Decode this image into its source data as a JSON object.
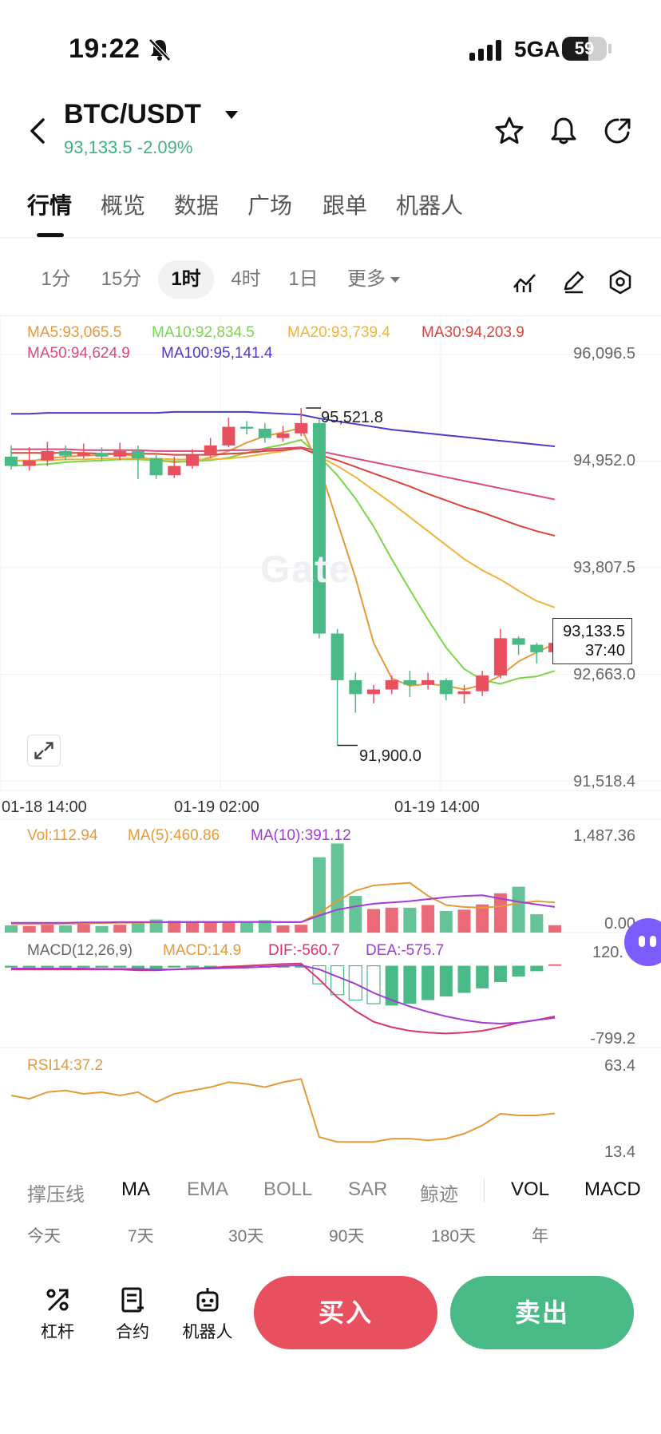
{
  "status_bar": {
    "time": "19:22",
    "network": "5GA",
    "battery": "59",
    "battery_level": 0.59
  },
  "header": {
    "pair": "BTC/USDT",
    "price_change": "93,133.5 -2.09%",
    "icons": [
      "back-icon",
      "star-icon",
      "bell-icon",
      "share-icon"
    ]
  },
  "main_tabs": [
    "行情",
    "概览",
    "数据",
    "广场",
    "跟单",
    "机器人"
  ],
  "intervals": {
    "items": [
      "1分",
      "15分",
      "1时",
      "4时",
      "1日",
      "更多"
    ],
    "active": "1时"
  },
  "watermark": "Gate",
  "colors": {
    "up": "#e8505f",
    "down": "#49b985",
    "ma5": "#e59a3a",
    "ma10": "#7bd64b",
    "ma20": "#f0b43a",
    "ma30": "#d9443b",
    "ma50": "#d94b7a",
    "ma100": "#4a3bc8"
  },
  "ma_legend": {
    "ma5": "MA5:93,065.5",
    "ma10": "MA10:92,834.5",
    "ma20": "MA20:93,739.4",
    "ma30": "MA30:94,203.9",
    "ma50": "MA50:94,624.9",
    "ma100": "MA100:95,141.4"
  },
  "price_axis": [
    "96,096.5",
    "94,952.0",
    "93,807.5",
    "92,663.0",
    "91,518.4"
  ],
  "time_axis": [
    "01-18 14:00",
    "01-19 02:00",
    "01-19 14:00"
  ],
  "high_label": "95,521.8",
  "low_label": "91,900.0",
  "current_price": "93,133.5",
  "countdown": "37:40",
  "volume": {
    "label": "Vol:112.94",
    "ma5": "MA(5):460.86",
    "ma10": "MA(10):391.12",
    "axis_top": "1,487.36",
    "axis_bottom": "0.00"
  },
  "macd": {
    "label": "MACD(12,26,9)",
    "macd": "MACD:14.9",
    "dif": "DIF:-560.7",
    "dea": "DEA:-575.7",
    "axis_top": "120.",
    "axis_bottom": "-799.2"
  },
  "rsi": {
    "label": "RSI14:37.2",
    "axis_top": "63.4",
    "axis_bottom": "13.4"
  },
  "indicator_tabs": [
    "撑压线",
    "MA",
    "EMA",
    "BOLL",
    "SAR",
    "鲸迹",
    "VOL",
    "MACD"
  ],
  "periods": [
    "今天",
    "7天",
    "30天",
    "90天",
    "180天",
    "年"
  ],
  "bottom_tools": [
    "杠杆",
    "合约",
    "机器人"
  ],
  "buy_label": "买入",
  "sell_label": "卖出",
  "chart_data": {
    "type": "candlestick",
    "price_range": [
      91518.4,
      96096.5
    ],
    "x": [
      "01-18 14:00",
      "01-19 02:00",
      "01-19 14:00"
    ],
    "candles": [
      [
        95000,
        94900,
        95120,
        94860
      ],
      [
        94900,
        94960,
        95100,
        94850
      ],
      [
        94960,
        95060,
        95160,
        94900
      ],
      [
        95060,
        95010,
        95120,
        94960
      ],
      [
        95010,
        95040,
        95140,
        94980
      ],
      [
        95040,
        95000,
        95100,
        94950
      ],
      [
        95000,
        95060,
        95150,
        94960
      ],
      [
        95060,
        94980,
        95120,
        94760
      ],
      [
        94980,
        94800,
        95040,
        94760
      ],
      [
        94800,
        94900,
        95000,
        94770
      ],
      [
        94900,
        95020,
        95080,
        94870
      ],
      [
        95020,
        95120,
        95200,
        94990
      ],
      [
        95120,
        95320,
        95420,
        95100
      ],
      [
        95320,
        95300,
        95380,
        95240
      ],
      [
        95300,
        95200,
        95360,
        95150
      ],
      [
        95200,
        95250,
        95330,
        95160
      ],
      [
        95250,
        95360,
        95522,
        95220
      ],
      [
        95360,
        93100,
        95400,
        93050
      ],
      [
        93100,
        92600,
        93150,
        91900
      ],
      [
        92600,
        92450,
        92680,
        92250
      ],
      [
        92450,
        92500,
        92550,
        92350
      ],
      [
        92500,
        92600,
        92650,
        92450
      ],
      [
        92600,
        92550,
        92700,
        92420
      ],
      [
        92550,
        92600,
        92680,
        92500
      ],
      [
        92600,
        92450,
        92620,
        92380
      ],
      [
        92450,
        92480,
        92550,
        92350
      ],
      [
        92480,
        92650,
        92700,
        92430
      ],
      [
        92650,
        93050,
        93150,
        92620
      ],
      [
        93050,
        92980,
        93070,
        92870
      ],
      [
        92980,
        92900,
        93000,
        92780
      ],
      [
        92900,
        93000,
        93040,
        92850
      ]
    ],
    "ma": {
      "MA5": [
        94960,
        94950,
        94980,
        95000,
        95010,
        95020,
        95030,
        95000,
        94960,
        94940,
        94950,
        94990,
        95060,
        95150,
        95220,
        95260,
        95310,
        94900,
        94300,
        93700,
        93000,
        92620,
        92540,
        92560,
        92540,
        92500,
        92550,
        92650,
        92800,
        92900,
        92990
      ],
      "MA10": [
        94900,
        94910,
        94920,
        94940,
        94950,
        94960,
        94970,
        94970,
        94960,
        94950,
        94950,
        94960,
        94990,
        95040,
        95090,
        95130,
        95180,
        95000,
        94800,
        94550,
        94250,
        93900,
        93570,
        93250,
        92950,
        92720,
        92600,
        92560,
        92620,
        92640,
        92700
      ],
      "MA20": [
        94960,
        94960,
        94960,
        94970,
        94970,
        94980,
        94980,
        94980,
        94980,
        94970,
        94970,
        94970,
        94980,
        95000,
        95030,
        95060,
        95100,
        95000,
        94900,
        94780,
        94640,
        94500,
        94350,
        94200,
        94050,
        93900,
        93780,
        93680,
        93560,
        93450,
        93380
      ],
      "MA30": [
        95040,
        95040,
        95040,
        95040,
        95040,
        95030,
        95030,
        95030,
        95030,
        95020,
        95020,
        95020,
        95030,
        95040,
        95060,
        95070,
        95090,
        95020,
        94960,
        94890,
        94820,
        94750,
        94680,
        94600,
        94530,
        94460,
        94400,
        94330,
        94260,
        94200,
        94150
      ],
      "MA50": [
        95080,
        95080,
        95080,
        95080,
        95070,
        95070,
        95070,
        95070,
        95060,
        95060,
        95060,
        95060,
        95070,
        95070,
        95080,
        95090,
        95100,
        95060,
        95020,
        94980,
        94940,
        94900,
        94860,
        94820,
        94780,
        94740,
        94700,
        94660,
        94620,
        94580,
        94540
      ],
      "MA100": [
        95460,
        95460,
        95470,
        95470,
        95470,
        95470,
        95470,
        95470,
        95470,
        95480,
        95480,
        95480,
        95480,
        95480,
        95470,
        95460,
        95450,
        95410,
        95380,
        95350,
        95320,
        95290,
        95270,
        95250,
        95230,
        95210,
        95190,
        95170,
        95150,
        95130,
        95110
      ]
    },
    "volume": {
      "range": [
        0,
        1487.36
      ],
      "values": [
        110,
        100,
        120,
        110,
        130,
        100,
        120,
        140,
        200,
        180,
        170,
        160,
        170,
        150,
        190,
        110,
        120,
        1150,
        1360,
        560,
        360,
        380,
        380,
        420,
        330,
        350,
        430,
        600,
        700,
        280,
        112.94
      ],
      "ma5": [
        130,
        130,
        130,
        135,
        140,
        145,
        150,
        150,
        155,
        160,
        165,
        165,
        165,
        165,
        165,
        160,
        160,
        300,
        480,
        640,
        720,
        740,
        760,
        560,
        420,
        390,
        380,
        400,
        450,
        480,
        460.86
      ],
      "ma10": [
        150,
        150,
        150,
        150,
        155,
        155,
        160,
        160,
        160,
        160,
        160,
        160,
        160,
        160,
        160,
        160,
        160,
        260,
        350,
        400,
        440,
        460,
        480,
        510,
        540,
        560,
        570,
        520,
        470,
        430,
        391.12
      ]
    },
    "macd": {
      "range": [
        -799.2,
        120
      ],
      "hist": [
        -20,
        -20,
        -20,
        -20,
        -20,
        -20,
        -20,
        -30,
        -30,
        -20,
        -20,
        -20,
        -20,
        -20,
        -20,
        -20,
        -20,
        -200,
        -320,
        -380,
        -420,
        -440,
        -420,
        -380,
        -340,
        -300,
        -250,
        -180,
        -120,
        -60,
        14.9
      ],
      "dif": [
        -40,
        -40,
        -40,
        -40,
        -40,
        -40,
        -40,
        -50,
        -50,
        -40,
        -30,
        -20,
        -10,
        0,
        10,
        20,
        25,
        -150,
        -350,
        -500,
        -620,
        -680,
        -720,
        -740,
        -750,
        -740,
        -720,
        -680,
        -630,
        -600,
        -560.7
      ],
      "dea": [
        -30,
        -30,
        -30,
        -30,
        -30,
        -35,
        -35,
        -35,
        -40,
        -40,
        -35,
        -30,
        -25,
        -20,
        -10,
        0,
        5,
        -40,
        -120,
        -200,
        -300,
        -380,
        -450,
        -510,
        -560,
        -600,
        -630,
        -640,
        -630,
        -600,
        -575.7
      ]
    },
    "rsi": {
      "range": [
        13.4,
        63.4
      ],
      "values": [
        48,
        46,
        50,
        51,
        49,
        50,
        48,
        50,
        44,
        49,
        51,
        53,
        56,
        55,
        53,
        56,
        58,
        23,
        20,
        20,
        20,
        22,
        22,
        21,
        22,
        25,
        30,
        37,
        36,
        36,
        37.2
      ]
    }
  }
}
